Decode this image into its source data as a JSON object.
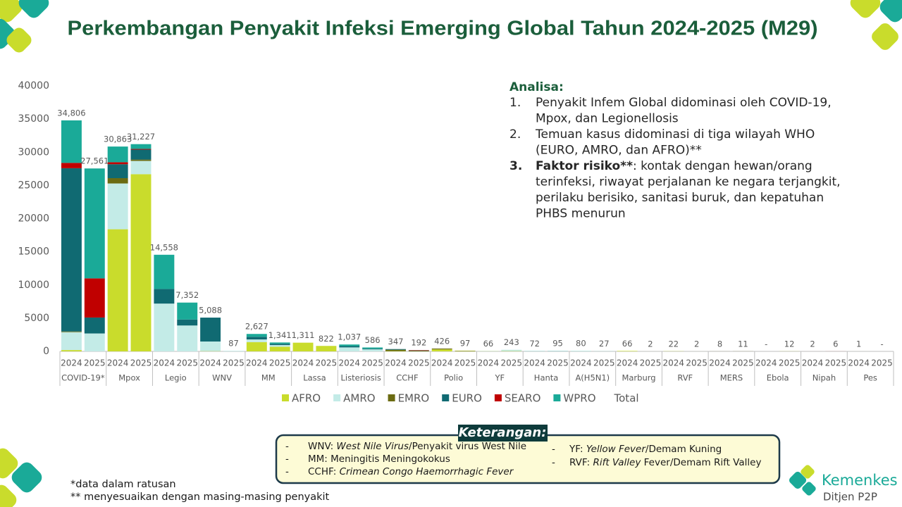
{
  "chart_data": {
    "type": "bar",
    "stacked": true,
    "title": "Perkembangan Penyakit Infeksi Emerging Global Tahun 2024-2025 (M29)",
    "categories": [
      "2024",
      "2025",
      "2024",
      "2025",
      "2024",
      "2025",
      "2024",
      "2025",
      "2024",
      "2025",
      "2024",
      "2025",
      "2024",
      "2025",
      "2024",
      "2025",
      "2024",
      "2025",
      "2024",
      "2025",
      "2024",
      "2025",
      "2024",
      "2025",
      "2024",
      "2025",
      "2024",
      "2025",
      "2024",
      "2025",
      "2024",
      "2025",
      "2024",
      "2025",
      "2024",
      "2025"
    ],
    "groups": [
      "COVID-19*",
      "Mpox",
      "Legio",
      "WNV",
      "MM",
      "Lassa",
      "Listeriosis",
      "CCHF",
      "Polio",
      "YF",
      "Hanta",
      "A(H5N1)",
      "Marburg",
      "RVF",
      "MERS",
      "Ebola",
      "Nipah",
      "Pes"
    ],
    "series": [
      {
        "name": "AFRO",
        "color": "#c9dc2c",
        "values": [
          200,
          0,
          18400,
          26700,
          0,
          0,
          38,
          0,
          1400,
          700,
          1311,
          822,
          0,
          0,
          47,
          0,
          300,
          50,
          30,
          43,
          0,
          0,
          0,
          0,
          66,
          2,
          22,
          2,
          0,
          0,
          0,
          12,
          0,
          0,
          1,
          0
        ]
      },
      {
        "name": "AMRO",
        "color": "#c3ebe7",
        "values": [
          2700,
          2700,
          6900,
          2000,
          7200,
          3900,
          1450,
          87,
          400,
          250,
          0,
          0,
          600,
          300,
          0,
          0,
          0,
          0,
          36,
          200,
          60,
          80,
          70,
          20,
          0,
          0,
          0,
          0,
          0,
          0,
          0,
          0,
          0,
          0,
          0,
          0
        ]
      },
      {
        "name": "EMRO",
        "color": "#6b6b12",
        "values": [
          100,
          0,
          800,
          200,
          0,
          0,
          0,
          0,
          0,
          0,
          0,
          0,
          0,
          0,
          200,
          100,
          126,
          47,
          0,
          0,
          0,
          0,
          0,
          0,
          0,
          0,
          0,
          0,
          8,
          11,
          0,
          0,
          0,
          0,
          0,
          0
        ]
      },
      {
        "name": "EURO",
        "color": "#106a72",
        "values": [
          24600,
          2400,
          2100,
          1500,
          2200,
          900,
          3600,
          0,
          400,
          200,
          0,
          0,
          200,
          100,
          100,
          42,
          0,
          0,
          0,
          0,
          12,
          15,
          0,
          0,
          0,
          0,
          0,
          0,
          0,
          0,
          0,
          0,
          0,
          0,
          0,
          0
        ]
      },
      {
        "name": "SEARO",
        "color": "#c00000",
        "values": [
          800,
          5900,
          300,
          100,
          0,
          0,
          0,
          0,
          0,
          0,
          0,
          0,
          0,
          0,
          0,
          50,
          0,
          0,
          0,
          0,
          0,
          0,
          0,
          0,
          0,
          0,
          0,
          0,
          0,
          0,
          0,
          0,
          2,
          6,
          0,
          0
        ]
      },
      {
        "name": "WPRO",
        "color": "#1aaa98",
        "values": [
          6406,
          16561,
          2363,
          727,
          5158,
          2552,
          0,
          0,
          427,
          191,
          0,
          0,
          237,
          186,
          0,
          0,
          0,
          0,
          0,
          0,
          0,
          0,
          10,
          7,
          0,
          0,
          0,
          0,
          0,
          0,
          0,
          0,
          0,
          0,
          0,
          0
        ]
      }
    ],
    "total": {
      "name": "Total",
      "values": [
        34806,
        27561,
        30863,
        31227,
        14558,
        7352,
        5088,
        87,
        2627,
        1341,
        1311,
        822,
        1037,
        586,
        347,
        192,
        426,
        97,
        66,
        243,
        72,
        95,
        80,
        27,
        66,
        2,
        22,
        2,
        8,
        11,
        0,
        12,
        2,
        6,
        1,
        0
      ],
      "value_labels": [
        "34,806",
        "27,561",
        "30,863",
        "31,227",
        "14,558",
        "7,352",
        "5,088",
        "87",
        "2,627",
        "1,341",
        "1,311",
        "822",
        "1,037",
        "586",
        "347",
        "192",
        "426",
        "97",
        "66",
        "243",
        "72",
        "95",
        "80",
        "27",
        "66",
        "2",
        "22",
        "2",
        "8",
        "11",
        "-",
        "12",
        "2",
        "6",
        "1",
        "-"
      ]
    },
    "ylim": [
      0,
      40000
    ],
    "yticks": [
      0,
      5000,
      10000,
      15000,
      20000,
      25000,
      30000,
      35000,
      40000
    ],
    "grid": false,
    "legend": "bottom"
  },
  "analysis": {
    "title": "Analisa:",
    "items": [
      {
        "number": "1.",
        "lines": [
          "Penyakit Infem Global didominasi oleh COVID-19,",
          "Mpox, dan Legionellosis"
        ]
      },
      {
        "number": "2.",
        "lines": [
          "Temuan kasus didominasi di tiga wilayah WHO",
          "(EURO, AMRO, dan AFRO)**"
        ]
      },
      {
        "number": "3.",
        "bold": "Faktor risiko**",
        "lines": [
          ": kontak dengan hewan/orang",
          "terinfeksi, riwayat perjalanan ke negara terjangkit,",
          "perilaku berisiko, sanitasi buruk, dan kepatuhan",
          "PHBS menurun"
        ]
      }
    ]
  },
  "legend_box": {
    "title": "Keterangan:",
    "bullet": "-",
    "left": [
      [
        {
          "text": "WNV: "
        },
        {
          "text": "West Nile Virus",
          "italic": true
        },
        {
          "text": "/Penyakit virus West Nile"
        }
      ],
      [
        {
          "text": "MM: Meningitis Meningokokus"
        }
      ],
      [
        {
          "text": "CCHF: "
        },
        {
          "text": "Crimean Congo Haemorrhagic Fever",
          "italic": true
        }
      ]
    ],
    "right": [
      [
        {
          "text": "YF: "
        },
        {
          "text": "Yellow Fever",
          "italic": true
        },
        {
          "text": "/Demam Kuning"
        }
      ],
      [
        {
          "text": "RVF: "
        },
        {
          "text": "Rift Valley",
          "italic": true
        },
        {
          "text": " Fever/Demam Rift Valley"
        }
      ]
    ]
  },
  "footnotes": [
    "*data dalam ratusan",
    "** menyesuaikan dengan masing-masing penyakit"
  ],
  "logo": {
    "name": "Kemenkes",
    "unit": "Ditjen P2P"
  }
}
